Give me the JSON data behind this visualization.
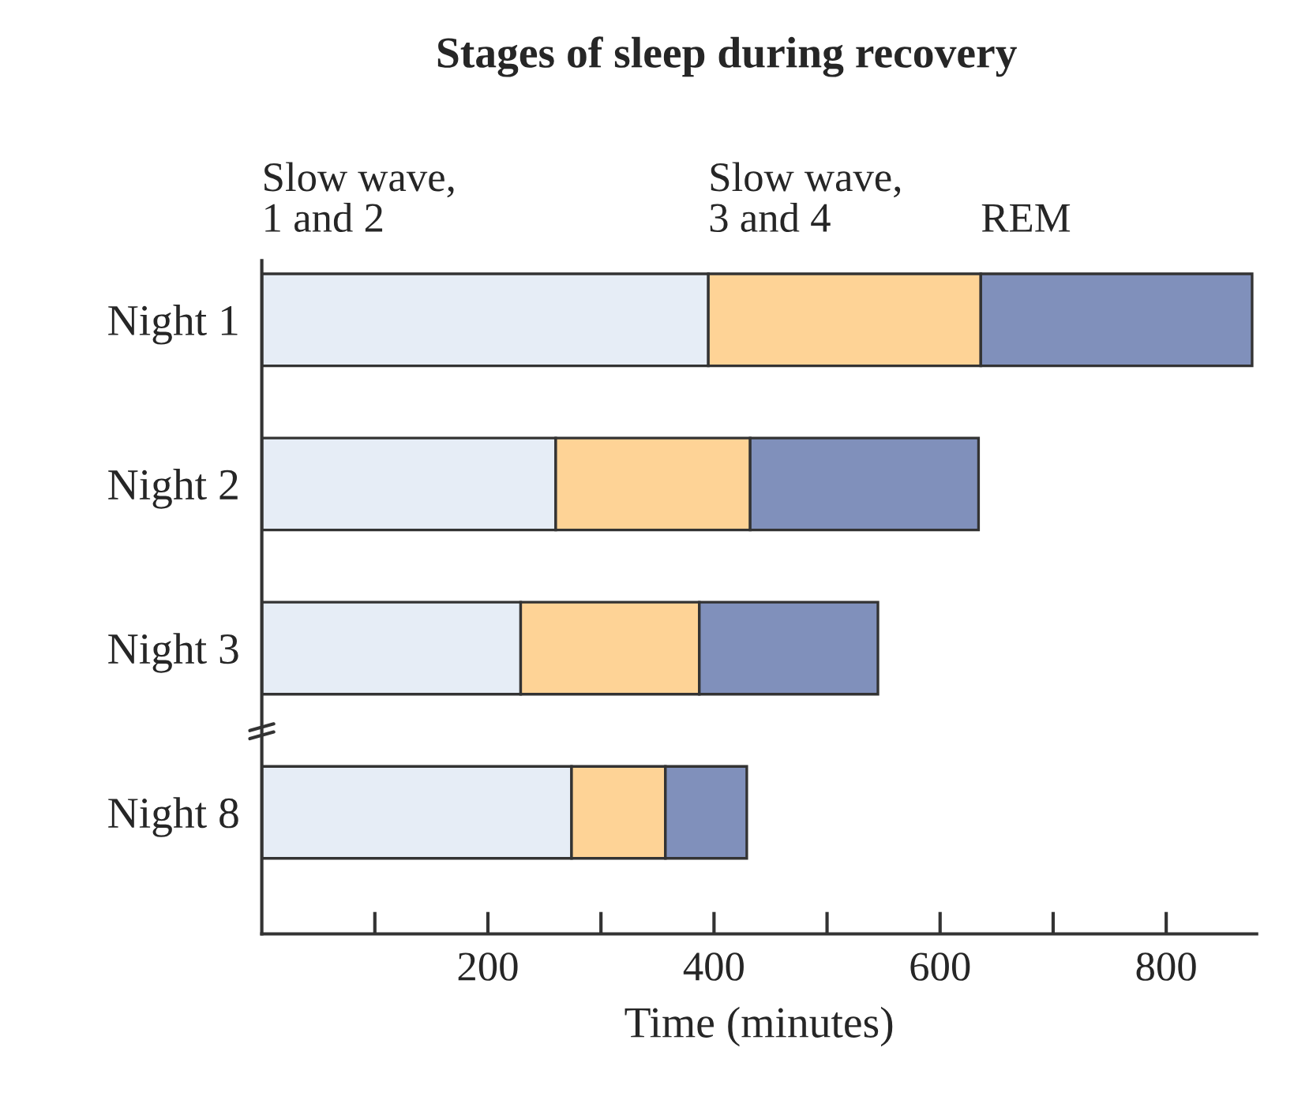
{
  "chart_data": {
    "type": "bar",
    "orientation": "horizontal",
    "stacked": true,
    "title": "Stages of sleep during recovery",
    "xlabel": "Time (minutes)",
    "categories": [
      "Night 1",
      "Night 2",
      "Night 3",
      "Night 8"
    ],
    "series": [
      {
        "name": "Slow wave,\n1 and 2",
        "color": "#e6edf6",
        "values": [
          395,
          260,
          229,
          274
        ]
      },
      {
        "name": "Slow wave,\n3 and 4",
        "color": "#fed396",
        "values": [
          241,
          172,
          158,
          83
        ]
      },
      {
        "name": "REM",
        "color": "#8090bb",
        "values": [
          240,
          202,
          158,
          72
        ]
      }
    ],
    "xlim": [
      0,
      880
    ],
    "xticks": [
      {
        "value": 100,
        "label": null
      },
      200,
      {
        "value": 300,
        "label": null
      },
      400,
      {
        "value": 500,
        "label": null
      },
      600,
      {
        "value": 700,
        "label": null
      },
      800
    ],
    "grid": false
  }
}
